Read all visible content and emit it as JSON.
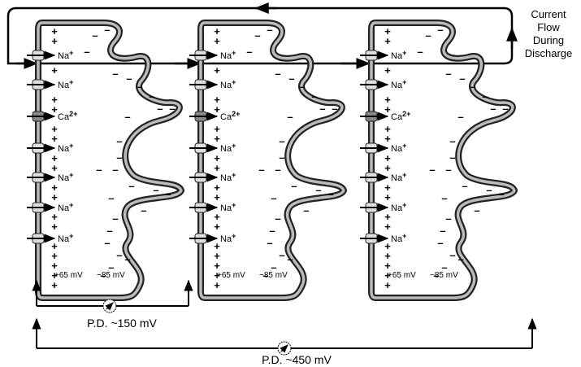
{
  "current_flow": {
    "lines": [
      "Current",
      "Flow",
      "During",
      "Discharge"
    ]
  },
  "cells": [
    {
      "channels": [
        {
          "symbol": "Na",
          "charge": "+"
        },
        {
          "symbol": "Na",
          "charge": "+"
        },
        {
          "symbol": "Ca",
          "charge": "2+"
        },
        {
          "symbol": "Na",
          "charge": "+"
        },
        {
          "symbol": "Na",
          "charge": "+"
        },
        {
          "symbol": "Na",
          "charge": "+"
        },
        {
          "symbol": "Na",
          "charge": "+"
        }
      ],
      "inside_left": "+65 mV",
      "inside_right": "−85 mV"
    },
    {
      "channels": [
        {
          "symbol": "Na",
          "charge": "+"
        },
        {
          "symbol": "Na",
          "charge": "+"
        },
        {
          "symbol": "Ca",
          "charge": "2+"
        },
        {
          "symbol": "Na",
          "charge": "+"
        },
        {
          "symbol": "Na",
          "charge": "+"
        },
        {
          "symbol": "Na",
          "charge": "+"
        },
        {
          "symbol": "Na",
          "charge": "+"
        }
      ],
      "inside_left": "+65 mV",
      "inside_right": "−85 mV"
    },
    {
      "channels": [
        {
          "symbol": "Na",
          "charge": "+"
        },
        {
          "symbol": "Na",
          "charge": "+"
        },
        {
          "symbol": "Ca",
          "charge": "2+"
        },
        {
          "symbol": "Na",
          "charge": "+"
        },
        {
          "symbol": "Na",
          "charge": "+"
        },
        {
          "symbol": "Na",
          "charge": "+"
        },
        {
          "symbol": "Na",
          "charge": "+"
        }
      ],
      "inside_left": "+65 mV",
      "inside_right": "−85 mV"
    }
  ],
  "charges": {
    "positive": "+",
    "negative": "–"
  },
  "potential_differences": [
    {
      "label": "P.D. ~150 mV"
    },
    {
      "label": "P.D. ~450 mV"
    }
  ]
}
